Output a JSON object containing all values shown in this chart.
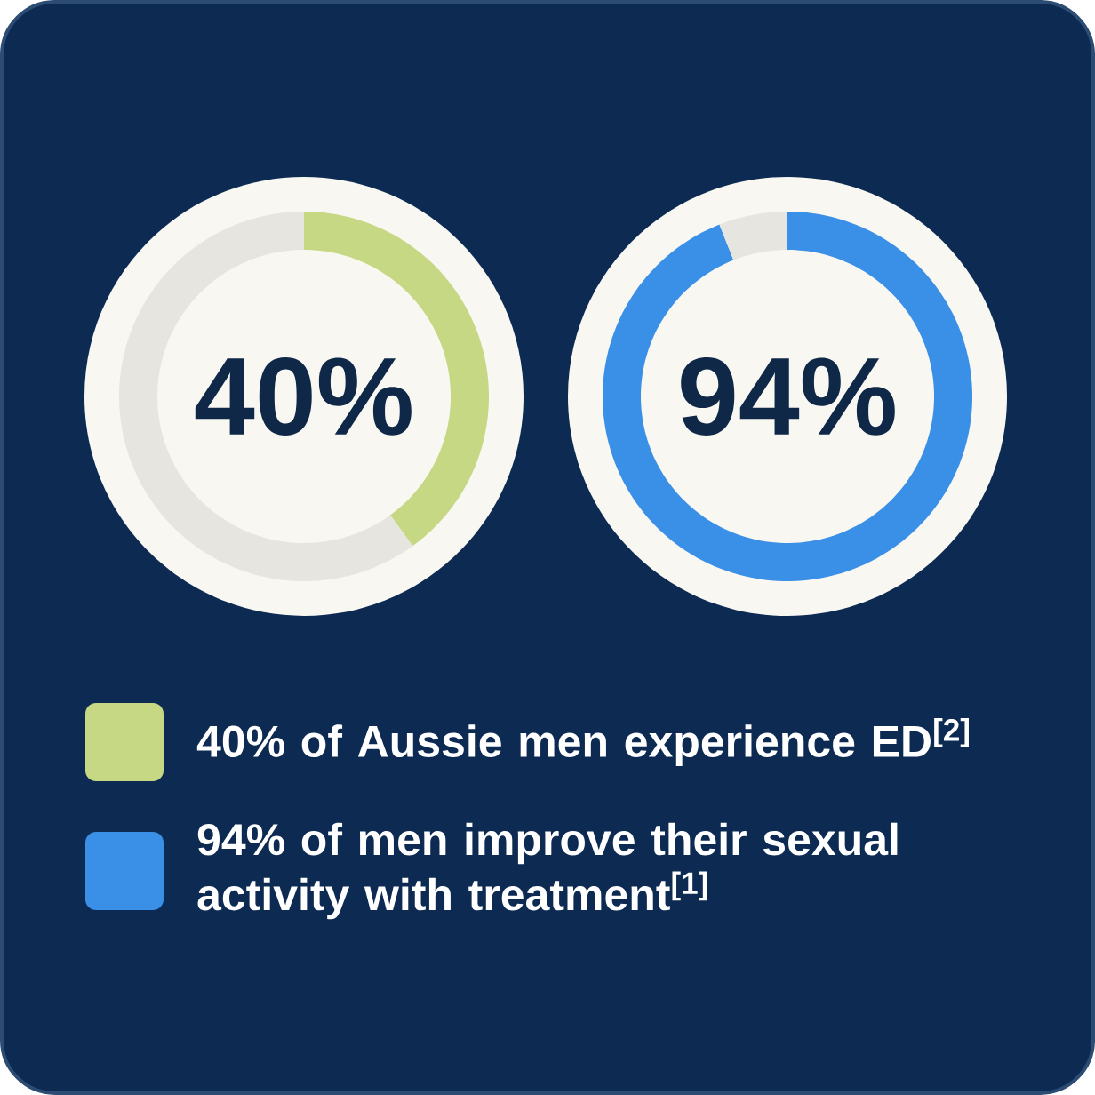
{
  "chart_data": [
    {
      "type": "donut",
      "categories": [
        "40% of Aussie men experience ED$^{[2]}$",
        null
      ],
      "values": [
        40,
        60
      ],
      "colors": [
        "#c6d884",
        "#e6e5e0"
      ],
      "annotations": [
        "40%"
      ],
      "legend": "bottom"
    },
    {
      "type": "donut",
      "categories": [
        "94% of men improve their sexual activity with treatment$^{[1]}$",
        null
      ],
      "values": [
        94,
        6
      ],
      "colors": [
        "#3a8fe6",
        "#e6e5e0"
      ],
      "annotations": [
        "94%"
      ],
      "legend": "bottom"
    }
  ]
}
